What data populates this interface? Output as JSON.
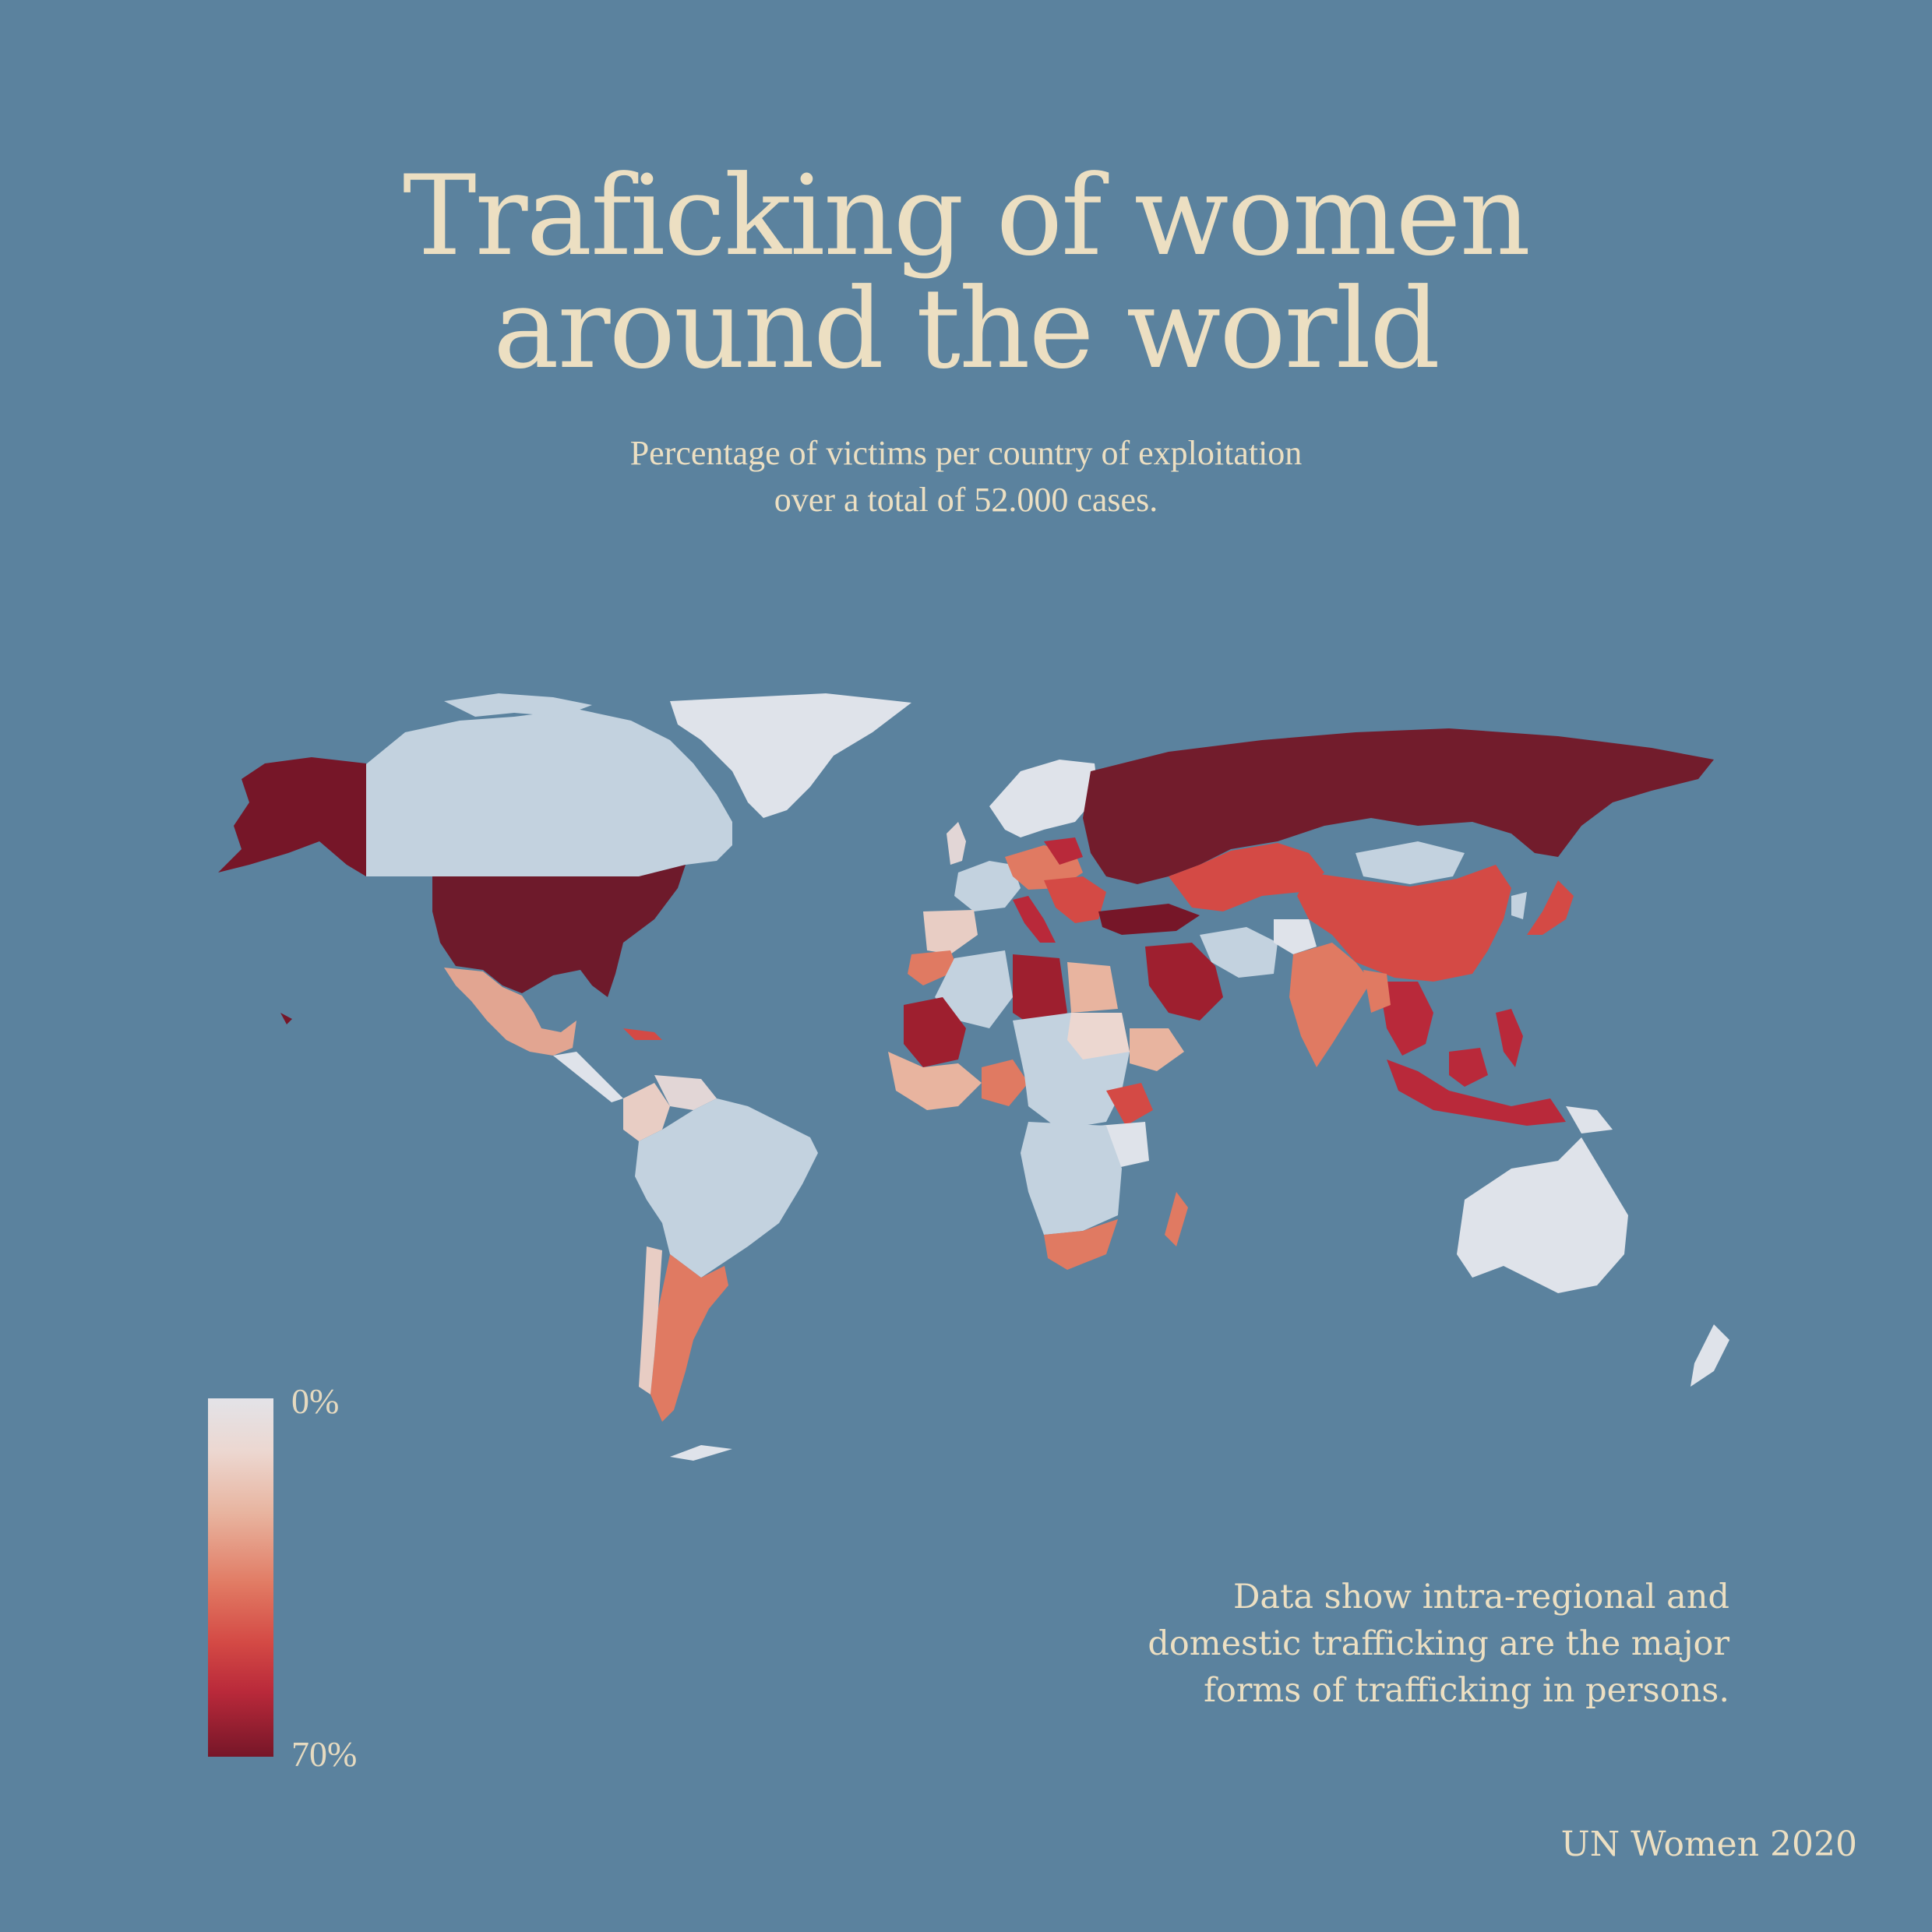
{
  "title": {
    "line1": "Traficking of women",
    "line2": "around the world"
  },
  "subtitle": {
    "line1": "Percentage of victims per country of exploitation",
    "line2": "over a total of 52.000 cases."
  },
  "legend": {
    "min_label": "0%",
    "max_label": "70%",
    "min_color": "#e3e3e8",
    "max_color": "#761628"
  },
  "note": {
    "line1": "Data show intra-regional and",
    "line2": "domestic trafficking are the major",
    "line3": "forms of trafficking in persons."
  },
  "source": "UN Women 2020",
  "colors": {
    "background": "#5b829e",
    "text": "#ecdfc2",
    "low": "#dfe3ea",
    "mid": "#e07a62",
    "high": "#761628"
  }
}
